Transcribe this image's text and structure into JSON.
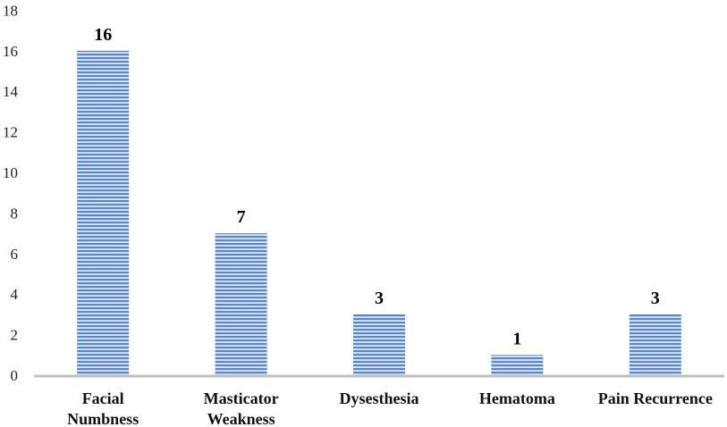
{
  "chart_data": {
    "type": "bar",
    "categories": [
      [
        "Facial",
        "Numbness"
      ],
      [
        "Masticator",
        "Weakness"
      ],
      [
        "Dysesthesia"
      ],
      [
        "Hematoma"
      ],
      [
        "Pain Recurrence"
      ]
    ],
    "values": [
      16,
      7,
      3,
      1,
      3
    ],
    "data_labels": [
      "16",
      "7",
      "3",
      "1",
      "3"
    ],
    "title": "",
    "xlabel": "",
    "ylabel": "",
    "ylim": [
      0,
      18
    ],
    "yticks": [
      "0",
      "2",
      "4",
      "6",
      "8",
      "10",
      "12",
      "14",
      "16",
      "18"
    ],
    "grid": false,
    "legend": "none",
    "bar_fill": "horizontal-stripes",
    "colors": {
      "bar_stripe": "#5b86cc",
      "bar_background": "#dce6f5",
      "axis": "#bfbfbf"
    }
  }
}
